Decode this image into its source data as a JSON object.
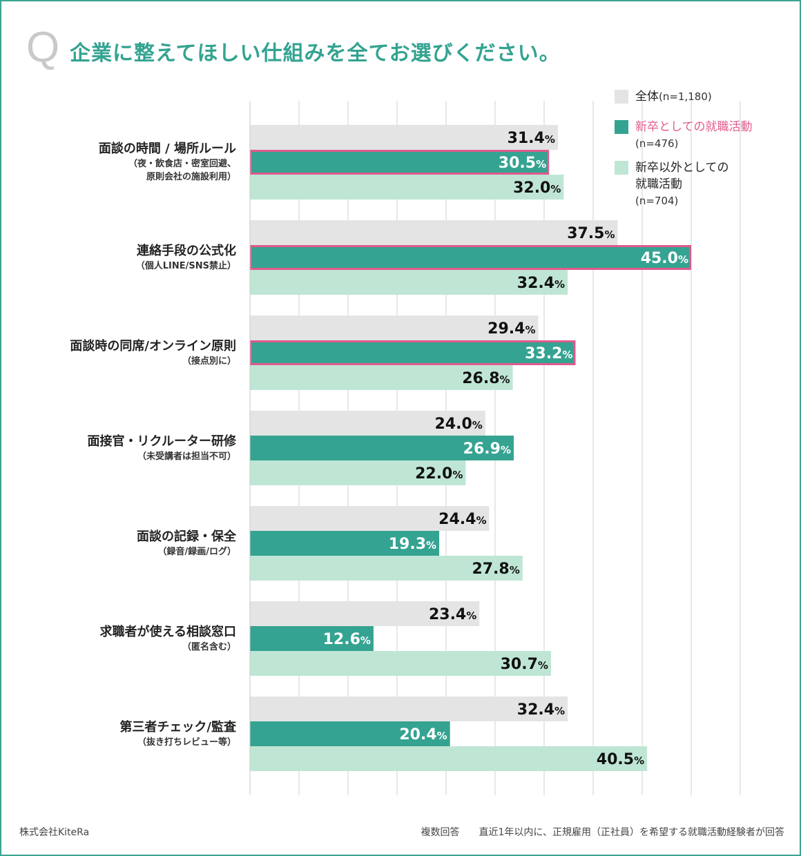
{
  "header": {
    "q_mark": "Q",
    "title": "企業に整えてほしい仕組みを全てお選びください。"
  },
  "legend": [
    {
      "label": "全体",
      "n": "(n=1,180)",
      "color": "#e4e4e4",
      "text_color": "#222222"
    },
    {
      "label": "新卒としての就職活動",
      "n": "(n=476)",
      "color": "#35a391",
      "text_color": "#e05a8c"
    },
    {
      "label": "新卒以外としての",
      "label2": "就職活動",
      "n": "(n=704)",
      "color": "#bfe6d5",
      "text_color": "#222222"
    }
  ],
  "chart_data": {
    "type": "bar",
    "orientation": "horizontal",
    "title": "企業に整えてほしい仕組みを全てお選びください。",
    "unit": "%",
    "xlim": [
      0,
      50
    ],
    "grid": true,
    "categories": [
      {
        "main": "面談の時間 / 場所ルール",
        "sub": [
          "（夜・飲食店・密室回避、",
          "原則会社の施設利用）"
        ]
      },
      {
        "main": "連絡手段の公式化",
        "sub": [
          "（個人LINE/SNS禁止）"
        ]
      },
      {
        "main": "面談時の同席/オンライン原則",
        "sub": [
          "（接点別に）"
        ]
      },
      {
        "main": "面接官・リクルーター研修",
        "sub": [
          "（未受講者は担当不可）"
        ]
      },
      {
        "main": "面談の記録・保全",
        "sub": [
          "（録音/録画/ログ）"
        ]
      },
      {
        "main": "求職者が使える相談窓口",
        "sub": [
          "（匿名含む）"
        ]
      },
      {
        "main": "第三者チェック/監査",
        "sub": [
          "（抜き打ちレビュー等）"
        ]
      }
    ],
    "series": [
      {
        "name": "全体 (n=1,180)",
        "color": "#e4e4e4",
        "label_color": "#111111",
        "values": [
          31.4,
          37.5,
          29.4,
          24.0,
          24.4,
          23.4,
          32.4
        ]
      },
      {
        "name": "新卒としての就職活動 (n=476)",
        "color": "#35a391",
        "label_color": "#ffffff",
        "values": [
          30.5,
          45.0,
          33.2,
          26.9,
          19.3,
          12.6,
          20.4
        ]
      },
      {
        "name": "新卒以外としての就職活動 (n=704)",
        "color": "#bfe6d5",
        "label_color": "#111111",
        "values": [
          32.0,
          32.4,
          26.8,
          22.0,
          27.8,
          30.7,
          40.5
        ]
      }
    ],
    "highlighted": [
      {
        "category_index": 0,
        "series_index": 1
      },
      {
        "category_index": 1,
        "series_index": 1
      },
      {
        "category_index": 2,
        "series_index": 1
      }
    ],
    "highlight_color": "#e05a8c"
  },
  "footer": {
    "company": "株式会社KiteRa",
    "note": "複数回答　　直近1年以内に、正規雇用（正社員）を希望する就職活動経験者が回答"
  }
}
